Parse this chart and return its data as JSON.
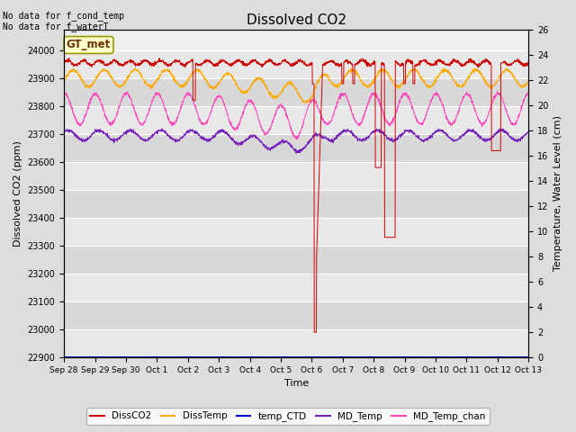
{
  "title": "Dissolved CO2",
  "ylabel_left": "Dissolved CO2 (ppm)",
  "ylabel_right": "Temperature, Water Level (cm)",
  "xlabel": "Time",
  "annotation_top_left": "No data for f_cond_temp\nNo data for f_waterT",
  "gt_met_label": "GT_met",
  "ylim_left": [
    22900,
    24075
  ],
  "ylim_right": [
    0,
    26
  ],
  "yticks_left": [
    22900,
    23000,
    23100,
    23200,
    23300,
    23400,
    23500,
    23600,
    23700,
    23800,
    23900,
    24000
  ],
  "yticks_right": [
    0,
    2,
    4,
    6,
    8,
    10,
    12,
    14,
    16,
    18,
    20,
    22,
    24,
    26
  ],
  "xtick_labels": [
    "Sep 28",
    "Sep 29",
    "Sep 30",
    "Oct 1",
    "Oct 2",
    "Oct 3",
    "Oct 4",
    "Oct 5",
    "Oct 6",
    "Oct 7",
    "Oct 8",
    "Oct 9",
    "Oct 10",
    "Oct 11",
    "Oct 12",
    "Oct 13"
  ],
  "legend_items": [
    {
      "label": "DissCO2",
      "color": "#cc0000"
    },
    {
      "label": "DissTemp",
      "color": "#ffaa00"
    },
    {
      "label": "temp_CTD",
      "color": "#0000cc"
    },
    {
      "label": "MD_Temp",
      "color": "#7722bb"
    },
    {
      "label": "MD_Temp_chan",
      "color": "#ff44bb"
    }
  ],
  "num_points": 2000
}
